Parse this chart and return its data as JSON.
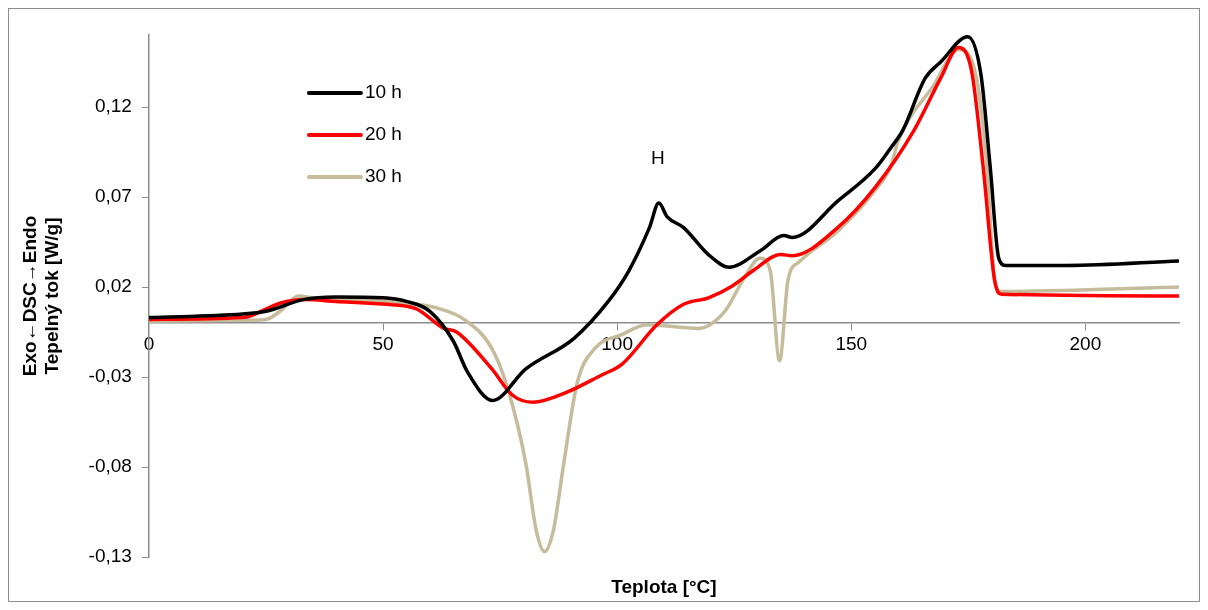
{
  "chart_data": {
    "type": "line",
    "xlabel": "Teplota [°C]",
    "ylabel": "Exo←DSC→Endo\nTepelný tok [W/g]",
    "xlim": [
      0,
      220
    ],
    "xticks": [
      0,
      50,
      100,
      150,
      200
    ],
    "ylim": [
      -0.13,
      0.16
    ],
    "yticks": [
      {
        "value": -0.13,
        "label": "-0,13"
      },
      {
        "value": -0.08,
        "label": "-0,08"
      },
      {
        "value": -0.03,
        "label": "-0,03"
      },
      {
        "value": 0.02,
        "label": "0,02"
      },
      {
        "value": 0.07,
        "label": "0,07"
      },
      {
        "value": 0.12,
        "label": "0,12"
      }
    ],
    "grid": false,
    "legend": "top left",
    "marker": "none",
    "line_style": "solid",
    "annotations": [
      "H"
    ],
    "series": [
      {
        "name": "10 h",
        "color": "#000000",
        "x": [
          0,
          20,
          25,
          33,
          40,
          50,
          55,
          60,
          65,
          68,
          73.4,
          80.5,
          90.8,
          98.1,
          102.5,
          106.9,
          108.9,
          110.7,
          114.2,
          119.5,
          123.9,
          130.5,
          135.6,
          137.4,
          147.1,
          155.2,
          158.5,
          161,
          165.8,
          169.1,
          174.9,
          177.7,
          179.7,
          181.5,
          183,
          196,
          220
        ],
        "values": [
          0.003,
          0.005,
          0.0065,
          0.013,
          0.0144,
          0.014,
          0.012,
          0.0065,
          -0.01,
          -0.027,
          -0.043,
          -0.0255,
          -0.0085,
          0.012,
          0.029,
          0.053,
          0.0666,
          0.059,
          0.053,
          0.038,
          0.031,
          0.04,
          0.0486,
          0.0475,
          0.0677,
          0.086,
          0.0975,
          0.107,
          0.136,
          0.145,
          0.159,
          0.138,
          0.086,
          0.036,
          0.032,
          0.032,
          0.0345
        ]
      },
      {
        "name": "20 h",
        "color": "#ff0000",
        "x": [
          0,
          20,
          28,
          33,
          40,
          50,
          57,
          63,
          65.7,
          73.2,
          77.6,
          82,
          89.3,
          96.6,
          101,
          108.5,
          114.2,
          119.5,
          124.6,
          129,
          134.9,
          137.4,
          147.1,
          155.2,
          163.4,
          169.1,
          172.9,
          175.7,
          178.2,
          180.6,
          182.1,
          220
        ],
        "values": [
          0.002,
          0.003,
          0.011,
          0.013,
          0.012,
          0.0105,
          0.008,
          -0.003,
          -0.005,
          -0.0254,
          -0.04,
          -0.044,
          -0.0384,
          -0.029,
          -0.023,
          -0.001,
          0.0104,
          0.014,
          0.0206,
          0.029,
          0.038,
          0.0374,
          0.053,
          0.0756,
          0.107,
          0.136,
          0.153,
          0.14,
          0.086,
          0.024,
          0.016,
          0.015
        ]
      },
      {
        "name": "30 h",
        "color": "#c4bc9a",
        "x": [
          0,
          20,
          25,
          28,
          32,
          35,
          45,
          55,
          62,
          67.3,
          73.2,
          76.7,
          80.5,
          82.7,
          84.5,
          86.4,
          88.6,
          91.5,
          95.3,
          101,
          106.3,
          117.3,
          123,
          126.8,
          130.5,
          132.7,
          134.7,
          136.5,
          138.9,
          147.1,
          155.2,
          158.5,
          160,
          167.6,
          172.9,
          176.6,
          179,
          180.6,
          182.1,
          220
        ],
        "values": [
          0.001,
          0.0015,
          0.002,
          0.0065,
          0.015,
          0.014,
          0.013,
          0.011,
          0.008,
          0.002,
          -0.014,
          -0.037,
          -0.078,
          -0.115,
          -0.127,
          -0.115,
          -0.078,
          -0.033,
          -0.014,
          -0.0065,
          -0.001,
          -0.003,
          0.0065,
          0.0234,
          0.036,
          0.029,
          -0.021,
          0.024,
          0.034,
          0.051,
          0.074,
          0.0875,
          0.101,
          0.132,
          0.152,
          0.138,
          0.086,
          0.024,
          0.0175,
          0.02
        ]
      }
    ]
  }
}
